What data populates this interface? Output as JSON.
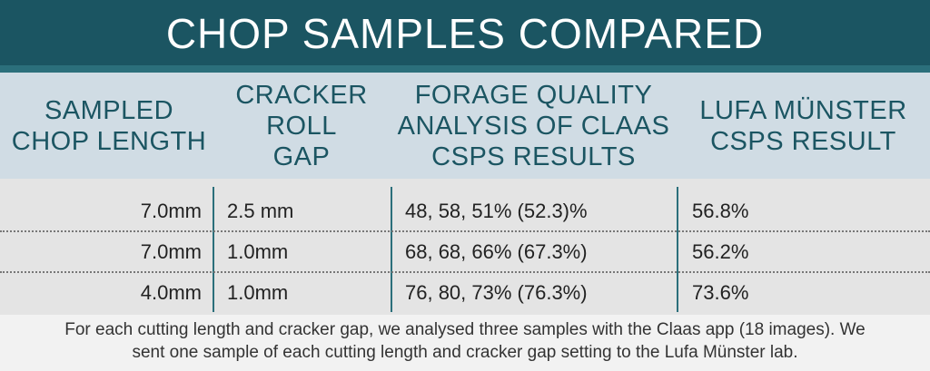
{
  "header": {
    "title": "CHOP SAMPLES COMPARED"
  },
  "table": {
    "columns": [
      [
        "SAMPLED",
        "CHOP LENGTH"
      ],
      [
        "CRACKER",
        "ROLL",
        "GAP"
      ],
      [
        "FORAGE QUALITY",
        "ANALYSIS OF CLAAS",
        "CSPS RESULTS"
      ],
      [
        "LUFA MÜNSTER",
        "CSPS RESULT"
      ]
    ],
    "rows": [
      [
        "7.0mm",
        "2.5 mm",
        "48, 58, 51% (52.3)%",
        "56.8%"
      ],
      [
        "7.0mm",
        "1.0mm",
        "68, 68, 66% (67.3%)",
        "56.2%"
      ],
      [
        "4.0mm",
        "1.0mm",
        "76, 80, 73% (76.3%)",
        "73.6%"
      ]
    ]
  },
  "footnote": [
    "For each cutting length and cracker gap, we analysed three samples with the Claas app (18 images). We",
    "sent one sample of each cutting length and cracker gap setting to the Lufa Münster lab."
  ]
}
